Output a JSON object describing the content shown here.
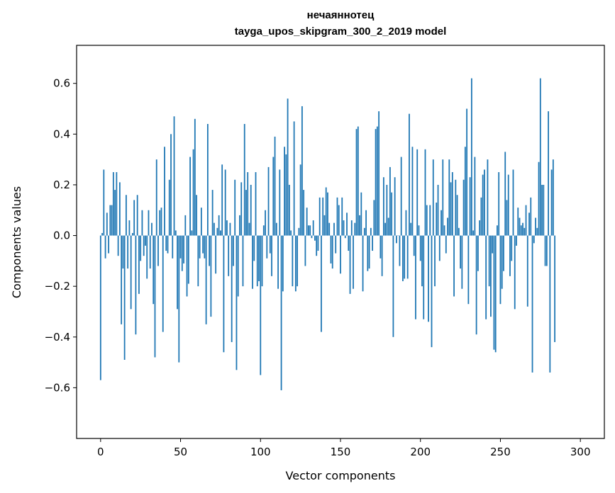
{
  "chart_data": {
    "type": "bar",
    "title": "нечаяннотец",
    "subtitle": "tayga_upos_skipgram_300_2_2019 model",
    "xlabel": "Vector components",
    "ylabel": "Components values",
    "xlim": [
      -15,
      315
    ],
    "ylim": [
      -0.8,
      0.75
    ],
    "x_ticks": [
      0,
      50,
      100,
      150,
      200,
      250,
      300
    ],
    "y_ticks": [
      -0.6,
      -0.4,
      -0.2,
      0.0,
      0.2,
      0.4,
      0.6
    ],
    "y_tick_labels": [
      "−0.6",
      "−0.4",
      "−0.2",
      "0.0",
      "0.2",
      "0.4",
      "0.6"
    ],
    "grid": false,
    "color": "#1f77b4",
    "values": [
      -0.57,
      0.01,
      0.26,
      -0.09,
      0.09,
      -0.07,
      0.12,
      0.12,
      0.25,
      0.18,
      0.25,
      -0.08,
      0.21,
      -0.35,
      -0.13,
      -0.49,
      0.16,
      -0.13,
      0.06,
      -0.29,
      0.01,
      0.14,
      -0.39,
      0.16,
      -0.23,
      -0.1,
      0.1,
      -0.08,
      -0.04,
      -0.17,
      0.1,
      -0.13,
      0.05,
      -0.27,
      -0.48,
      0.3,
      -0.12,
      0.1,
      0.11,
      -0.38,
      0.35,
      -0.06,
      -0.07,
      0.22,
      0.4,
      -0.09,
      0.47,
      0.02,
      -0.29,
      -0.5,
      -0.09,
      -0.14,
      -0.11,
      0.08,
      -0.24,
      -0.19,
      0.31,
      0.02,
      0.34,
      0.46,
      0.16,
      -0.2,
      -0.09,
      0.11,
      -0.07,
      -0.09,
      -0.35,
      0.44,
      -0.12,
      -0.32,
      0.18,
      0.05,
      -0.15,
      0.03,
      0.08,
      0.02,
      0.28,
      -0.46,
      0.26,
      0.06,
      -0.16,
      0.05,
      -0.42,
      -0.12,
      0.22,
      -0.53,
      -0.24,
      0.08,
      0.21,
      -0.2,
      0.44,
      0.18,
      0.25,
      0.05,
      0.2,
      -0.21,
      -0.1,
      0.25,
      -0.2,
      -0.18,
      -0.55,
      -0.2,
      0.04,
      0.1,
      -0.09,
      0.27,
      -0.07,
      -0.16,
      0.31,
      0.39,
      0.05,
      -0.21,
      0.26,
      -0.61,
      -0.22,
      0.35,
      0.32,
      0.54,
      0.2,
      0.02,
      -0.2,
      0.45,
      -0.22,
      -0.2,
      0.03,
      0.28,
      0.51,
      0.18,
      -0.12,
      0.11,
      0.04,
      0.04,
      -0.01,
      0.06,
      -0.02,
      -0.08,
      -0.06,
      0.15,
      -0.38,
      0.15,
      0.08,
      0.19,
      0.17,
      0.05,
      -0.11,
      -0.13,
      0.05,
      -0.07,
      0.15,
      0.12,
      -0.15,
      0.15,
      0.06,
      -0.01,
      0.09,
      -0.06,
      -0.23,
      0.06,
      -0.21,
      0.05,
      0.42,
      0.43,
      0.08,
      0.17,
      -0.22,
      0.03,
      0.1,
      -0.14,
      -0.13,
      0.03,
      -0.06,
      0.14,
      0.42,
      0.43,
      0.49,
      -0.09,
      -0.16,
      0.23,
      0.05,
      0.2,
      0.07,
      0.27,
      0.17,
      -0.4,
      0.23,
      -0.03,
      0.0,
      -0.12,
      0.31,
      -0.18,
      -0.17,
      0.1,
      -0.17,
      0.48,
      0.05,
      0.35,
      -0.08,
      -0.33,
      0.34,
      0.04,
      -0.1,
      -0.2,
      -0.33,
      0.34,
      0.12,
      -0.34,
      0.12,
      -0.44,
      0.3,
      -0.2,
      0.13,
      0.2,
      -0.1,
      0.1,
      0.3,
      0.04,
      -0.07,
      0.07,
      0.3,
      0.21,
      0.25,
      -0.24,
      0.22,
      0.16,
      0.03,
      -0.13,
      -0.21,
      0.22,
      0.35,
      0.5,
      -0.27,
      0.23,
      0.62,
      0.02,
      0.31,
      -0.39,
      -0.14,
      0.06,
      0.15,
      0.24,
      0.26,
      -0.33,
      0.3,
      -0.2,
      -0.32,
      -0.07,
      -0.45,
      -0.46,
      0.04,
      0.25,
      -0.27,
      -0.21,
      -0.14,
      0.33,
      0.14,
      0.24,
      -0.16,
      -0.1,
      0.26,
      -0.29,
      -0.04,
      0.11,
      0.07,
      0.04,
      0.05,
      0.03,
      0.12,
      -0.28,
      0.09,
      0.15,
      -0.54,
      -0.03,
      0.07,
      0.03,
      0.29,
      0.62,
      0.2,
      0.2,
      -0.12,
      -0.12,
      0.49,
      -0.54,
      0.26,
      0.3,
      -0.42
    ]
  }
}
